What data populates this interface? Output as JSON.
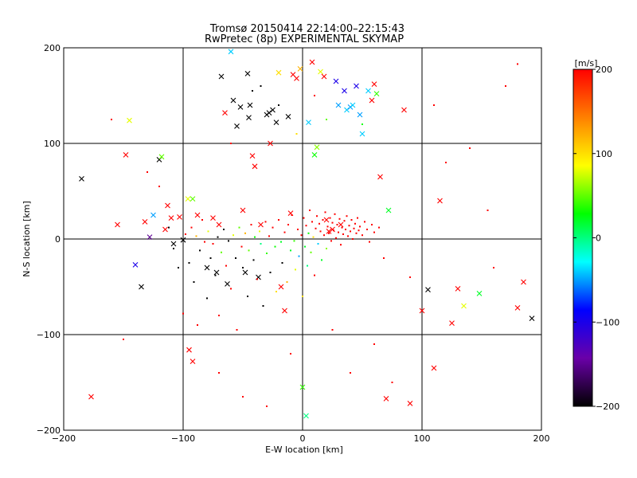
{
  "chart_data": {
    "type": "scatter",
    "title": "Tromsø 20150414 22:14:00–22:15:43",
    "subtitle": "RwPretec (8p) EXPERIMENTAL SKYMAP",
    "xlabel": "E-W location [km]",
    "ylabel": "N-S location [km]",
    "xlim": [
      -200,
      200
    ],
    "ylim": [
      -200,
      200
    ],
    "x_ticks": [
      -200,
      -100,
      0,
      100,
      200
    ],
    "y_ticks": [
      -200,
      -100,
      0,
      100,
      200
    ],
    "x_tick_labels": [
      "−200",
      "−100",
      "0",
      "100",
      "200"
    ],
    "y_tick_labels": [
      "−200",
      "−100",
      "0",
      "100",
      "200"
    ],
    "grid": true,
    "colorbar": {
      "label": "[m/s]",
      "range": [
        -200,
        200
      ],
      "ticks": [
        -200,
        -100,
        0,
        100,
        200
      ],
      "tick_labels": [
        "−200",
        "−100",
        "0",
        "100",
        "200"
      ],
      "colormap": [
        "#000000",
        "#6a00a8",
        "#0000ff",
        "#00ffff",
        "#00ff00",
        "#ffff00",
        "#ff8000",
        "#ff0000"
      ]
    },
    "series": [
      {
        "marker": "x",
        "points": [
          [
            -185,
            63
          ],
          [
            -177,
            -165
          ],
          [
            -155,
            15
          ],
          [
            -148,
            88
          ],
          [
            -145,
            124
          ],
          [
            -140,
            -27
          ],
          [
            -135,
            -50
          ],
          [
            -132,
            18
          ],
          [
            -128,
            2
          ],
          [
            -125,
            25
          ],
          [
            -120,
            83
          ],
          [
            -118,
            86
          ],
          [
            -115,
            10
          ],
          [
            -113,
            35
          ],
          [
            -110,
            22
          ],
          [
            -108,
            -5
          ],
          [
            -103,
            23
          ],
          [
            -100,
            -1
          ],
          [
            -96,
            42
          ],
          [
            -95,
            -116
          ],
          [
            -92,
            42
          ],
          [
            -92,
            -128
          ],
          [
            -88,
            25
          ],
          [
            -80,
            -30
          ],
          [
            -75,
            22
          ],
          [
            -72,
            -35
          ],
          [
            -70,
            15
          ],
          [
            -68,
            170
          ],
          [
            -65,
            132
          ],
          [
            -63,
            -47
          ],
          [
            -60,
            196
          ],
          [
            -58,
            145
          ],
          [
            -55,
            118
          ],
          [
            -52,
            138
          ],
          [
            -50,
            30
          ],
          [
            -48,
            -35
          ],
          [
            -46,
            173
          ],
          [
            -45,
            127
          ],
          [
            -44,
            140
          ],
          [
            -42,
            87
          ],
          [
            -40,
            76
          ],
          [
            -37,
            -40
          ],
          [
            -35,
            15
          ],
          [
            -30,
            130
          ],
          [
            -28,
            132
          ],
          [
            -27,
            100
          ],
          [
            -25,
            135
          ],
          [
            -22,
            122
          ],
          [
            -20,
            174
          ],
          [
            -18,
            -50
          ],
          [
            -15,
            -75
          ],
          [
            -12,
            128
          ],
          [
            -10,
            27
          ],
          [
            -8,
            172
          ],
          [
            -5,
            168
          ],
          [
            -2,
            178
          ],
          [
            0,
            -155
          ],
          [
            3,
            -185
          ],
          [
            5,
            122
          ],
          [
            8,
            185
          ],
          [
            10,
            88
          ],
          [
            12,
            96
          ],
          [
            15,
            175
          ],
          [
            18,
            170
          ],
          [
            20,
            20
          ],
          [
            22,
            8
          ],
          [
            25,
            10
          ],
          [
            28,
            165
          ],
          [
            30,
            140
          ],
          [
            32,
            15
          ],
          [
            35,
            155
          ],
          [
            37,
            135
          ],
          [
            40,
            138
          ],
          [
            42,
            140
          ],
          [
            45,
            160
          ],
          [
            48,
            130
          ],
          [
            50,
            110
          ],
          [
            55,
            155
          ],
          [
            58,
            145
          ],
          [
            60,
            162
          ],
          [
            62,
            152
          ],
          [
            65,
            65
          ],
          [
            70,
            -167
          ],
          [
            72,
            30
          ],
          [
            85,
            135
          ],
          [
            90,
            -172
          ],
          [
            100,
            -75
          ],
          [
            105,
            -53
          ],
          [
            110,
            -135
          ],
          [
            115,
            40
          ],
          [
            125,
            -88
          ],
          [
            130,
            -52
          ],
          [
            135,
            -70
          ],
          [
            148,
            -57
          ],
          [
            180,
            -72
          ],
          [
            185,
            -45
          ],
          [
            192,
            -83
          ]
        ],
        "values": [
          -200,
          200,
          200,
          200,
          80,
          -100,
          -200,
          200,
          -150,
          -50,
          -200,
          50,
          200,
          200,
          200,
          -200,
          200,
          -200,
          80,
          200,
          50,
          200,
          200,
          -200,
          200,
          -200,
          200,
          -200,
          200,
          -200,
          -40,
          -200,
          -200,
          -200,
          200,
          -200,
          -200,
          -200,
          -200,
          200,
          200,
          -200,
          200,
          -200,
          -200,
          200,
          -200,
          -200,
          100,
          200,
          200,
          -200,
          200,
          200,
          200,
          120,
          40,
          0,
          -40,
          200,
          30,
          60,
          80,
          200,
          200,
          200,
          200,
          -100,
          -50,
          200,
          -100,
          -40,
          -50,
          -40,
          -100,
          -50,
          -40,
          -40,
          200,
          200,
          40,
          200,
          200,
          20,
          200,
          200,
          200,
          -200,
          200,
          200,
          200,
          200,
          80,
          20,
          200,
          200,
          -200
        ]
      },
      {
        "marker": "dot",
        "points": [
          [
            -130,
            70
          ],
          [
            -120,
            55
          ],
          [
            -112,
            12
          ],
          [
            -108,
            -10
          ],
          [
            -104,
            -30
          ],
          [
            -100,
            -78
          ],
          [
            -98,
            5
          ],
          [
            -95,
            -25
          ],
          [
            -93,
            12
          ],
          [
            -91,
            -45
          ],
          [
            -89,
            3
          ],
          [
            -88,
            -90
          ],
          [
            -86,
            -12
          ],
          [
            -84,
            20
          ],
          [
            -82,
            -3
          ],
          [
            -80,
            -62
          ],
          [
            -79,
            8
          ],
          [
            -77,
            -20
          ],
          [
            -75,
            -5
          ],
          [
            -73,
            -38
          ],
          [
            -71,
            2
          ],
          [
            -70,
            -80
          ],
          [
            -68,
            -14
          ],
          [
            -66,
            10
          ],
          [
            -64,
            -28
          ],
          [
            -62,
            -2
          ],
          [
            -60,
            -52
          ],
          [
            -58,
            4
          ],
          [
            -56,
            -20
          ],
          [
            -55,
            -95
          ],
          [
            -53,
            12
          ],
          [
            -51,
            -8
          ],
          [
            -50,
            -30
          ],
          [
            -48,
            6
          ],
          [
            -46,
            -60
          ],
          [
            -45,
            -12
          ],
          [
            -43,
            15
          ],
          [
            -41,
            -22
          ],
          [
            -40,
            2
          ],
          [
            -38,
            -42
          ],
          [
            -36,
            8
          ],
          [
            -35,
            -5
          ],
          [
            -33,
            -70
          ],
          [
            -31,
            18
          ],
          [
            -30,
            -15
          ],
          [
            -28,
            3
          ],
          [
            -27,
            -35
          ],
          [
            -25,
            12
          ],
          [
            -23,
            -8
          ],
          [
            -22,
            -55
          ],
          [
            -20,
            20
          ],
          [
            -18,
            -3
          ],
          [
            -17,
            -25
          ],
          [
            -15,
            7
          ],
          [
            -13,
            -45
          ],
          [
            -12,
            15
          ],
          [
            -10,
            -12
          ],
          [
            -9,
            25
          ],
          [
            -7,
            -2
          ],
          [
            -6,
            -32
          ],
          [
            -4,
            10
          ],
          [
            -3,
            -18
          ],
          [
            -1,
            4
          ],
          [
            0,
            -60
          ],
          [
            1,
            22
          ],
          [
            2,
            -8
          ],
          [
            3,
            14
          ],
          [
            4,
            -28
          ],
          [
            5,
            6
          ],
          [
            6,
            30
          ],
          [
            7,
            -14
          ],
          [
            8,
            18
          ],
          [
            9,
            2
          ],
          [
            10,
            -38
          ],
          [
            11,
            11
          ],
          [
            12,
            24
          ],
          [
            13,
            -5
          ],
          [
            14,
            16
          ],
          [
            15,
            8
          ],
          [
            16,
            -22
          ],
          [
            17,
            20
          ],
          [
            18,
            4
          ],
          [
            19,
            28
          ],
          [
            20,
            -10
          ],
          [
            21,
            13
          ],
          [
            22,
            6
          ],
          [
            23,
            22
          ],
          [
            24,
            -2
          ],
          [
            25,
            17
          ],
          [
            26,
            9
          ],
          [
            27,
            26
          ],
          [
            28,
            1
          ],
          [
            29,
            15
          ],
          [
            30,
            7
          ],
          [
            31,
            21
          ],
          [
            32,
            -6
          ],
          [
            33,
            12
          ],
          [
            34,
            5
          ],
          [
            35,
            19
          ],
          [
            36,
            10
          ],
          [
            37,
            24
          ],
          [
            38,
            3
          ],
          [
            39,
            14
          ],
          [
            40,
            8
          ],
          [
            41,
            20
          ],
          [
            42,
            0
          ],
          [
            43,
            11
          ],
          [
            44,
            16
          ],
          [
            45,
            6
          ],
          [
            46,
            22
          ],
          [
            47,
            9
          ],
          [
            48,
            13
          ],
          [
            50,
            4
          ],
          [
            52,
            18
          ],
          [
            54,
            10
          ],
          [
            56,
            -3
          ],
          [
            58,
            15
          ],
          [
            60,
            7
          ],
          [
            64,
            12
          ],
          [
            68,
            -20
          ],
          [
            -60,
            100
          ],
          [
            -42,
            155
          ],
          [
            -35,
            160
          ],
          [
            -20,
            140
          ],
          [
            -5,
            110
          ],
          [
            10,
            150
          ],
          [
            20,
            125
          ],
          [
            50,
            120
          ],
          [
            -70,
            -140
          ],
          [
            -50,
            -165
          ],
          [
            -30,
            -175
          ],
          [
            -10,
            -120
          ],
          [
            25,
            -95
          ],
          [
            40,
            -140
          ],
          [
            60,
            -110
          ],
          [
            75,
            -150
          ],
          [
            90,
            -40
          ],
          [
            110,
            140
          ],
          [
            120,
            80
          ],
          [
            140,
            95
          ],
          [
            155,
            30
          ],
          [
            160,
            -30
          ],
          [
            170,
            160
          ],
          [
            180,
            183
          ],
          [
            -150,
            -105
          ],
          [
            -160,
            125
          ]
        ],
        "values": [
          200,
          200,
          -200,
          -200,
          -200,
          200,
          200,
          -200,
          200,
          -200,
          120,
          200,
          -200,
          200,
          200,
          -200,
          80,
          -200,
          200,
          -200,
          -200,
          200,
          50,
          -200,
          200,
          -200,
          200,
          80,
          -200,
          200,
          50,
          200,
          -200,
          120,
          -200,
          50,
          200,
          -200,
          30,
          200,
          80,
          0,
          -200,
          200,
          40,
          200,
          -200,
          200,
          30,
          100,
          200,
          20,
          -200,
          200,
          120,
          200,
          20,
          200,
          40,
          80,
          200,
          -50,
          200,
          100,
          200,
          20,
          200,
          0,
          30,
          200,
          50,
          200,
          100,
          200,
          200,
          200,
          -40,
          200,
          200,
          20,
          200,
          200,
          200,
          60,
          200,
          200,
          200,
          200,
          200,
          200,
          200,
          200,
          200,
          200,
          200,
          200,
          200,
          200,
          200,
          200,
          200,
          200,
          200,
          200,
          200,
          200,
          200,
          200,
          200,
          200,
          200,
          200,
          200,
          200,
          200,
          200,
          200,
          200,
          200,
          200,
          200,
          -200,
          -200,
          -200,
          100,
          200,
          50,
          30,
          200,
          200,
          200,
          200,
          200,
          200,
          200,
          200,
          200,
          200,
          200,
          200,
          200,
          200,
          200,
          200,
          200,
          200
        ]
      }
    ]
  }
}
